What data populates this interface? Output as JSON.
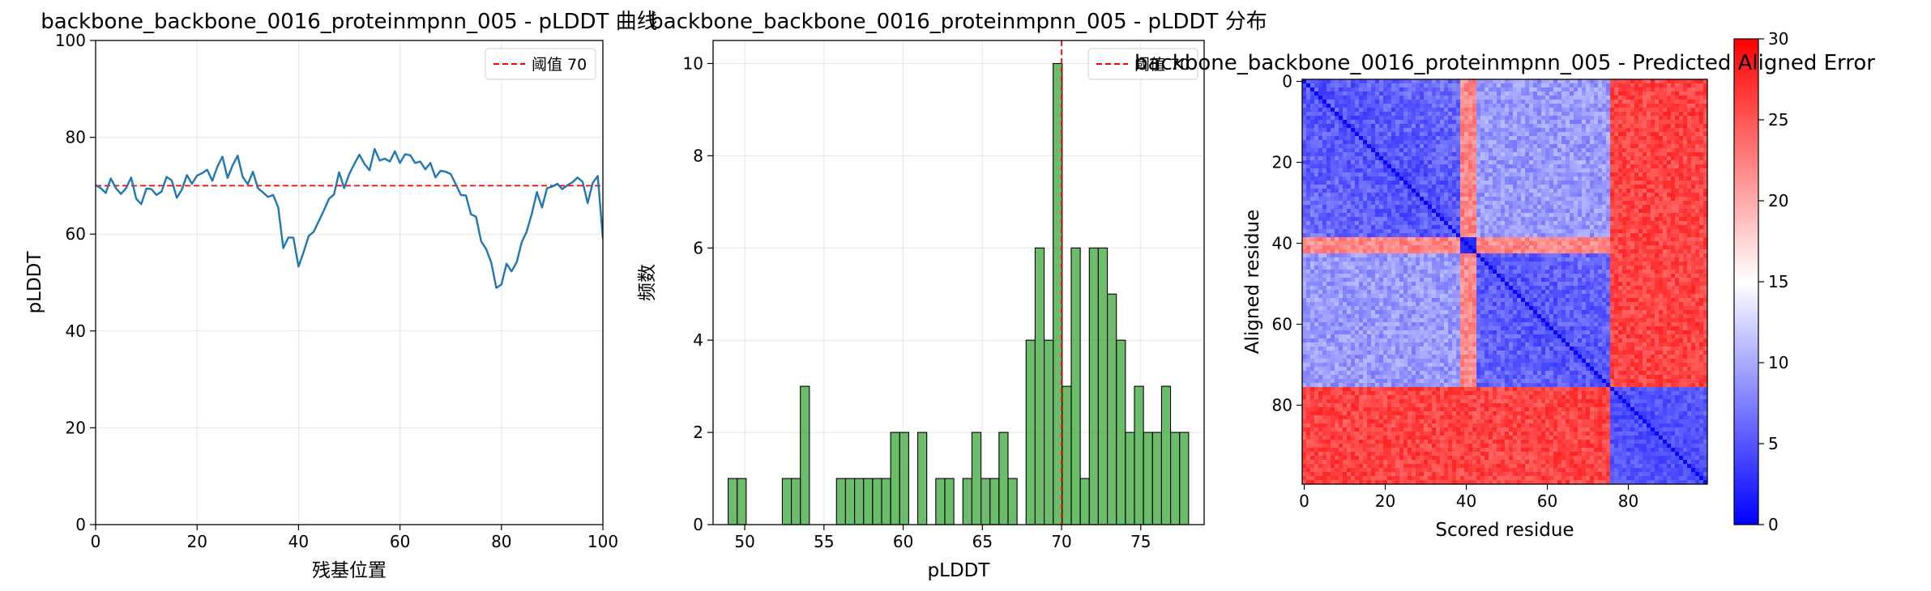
{
  "chart_data": [
    {
      "type": "line",
      "title": "backbone_backbone_0016_proteinmpnn_005 - pLDDT 曲线",
      "xlabel": "残基位置",
      "ylabel": "pLDDT",
      "xlim": [
        0,
        100
      ],
      "ylim": [
        0,
        100
      ],
      "xticks": [
        "0",
        "20",
        "40",
        "60",
        "80",
        "100"
      ],
      "yticks": [
        "0",
        "20",
        "40",
        "60",
        "80",
        "100"
      ],
      "grid": true,
      "legend_position": "top-right",
      "line_color": "#1f77b4",
      "reference_line": {
        "label": "阈值 70",
        "value": 70,
        "color": "#ff0000",
        "style": "dashed"
      },
      "x": [
        0,
        1,
        2,
        3,
        4,
        5,
        6,
        7,
        8,
        9,
        10,
        11,
        12,
        13,
        14,
        15,
        16,
        17,
        18,
        19,
        20,
        21,
        22,
        23,
        24,
        25,
        26,
        27,
        28,
        29,
        30,
        31,
        32,
        33,
        34,
        35,
        36,
        37,
        38,
        39,
        40,
        41,
        42,
        43,
        44,
        45,
        46,
        47,
        48,
        49,
        50,
        51,
        52,
        53,
        54,
        55,
        56,
        57,
        58,
        59,
        60,
        61,
        62,
        63,
        64,
        65,
        66,
        67,
        68,
        69,
        70,
        71,
        72,
        73,
        74,
        75,
        76,
        77,
        78,
        79,
        80,
        81,
        82,
        83,
        84,
        85,
        86,
        87,
        88,
        89,
        90,
        91,
        92,
        93,
        94,
        95,
        96,
        97,
        98,
        99,
        100
      ],
      "y": [
        70.1,
        69.5,
        68.5,
        71.5,
        69.5,
        68.3,
        69.5,
        71.7,
        67.3,
        66.2,
        69.4,
        69.3,
        68.1,
        68.8,
        71.8,
        71.1,
        67.5,
        69.2,
        72.2,
        70.4,
        72.1,
        72.6,
        73.3,
        71.0,
        73.9,
        76.0,
        71.6,
        74.2,
        76.2,
        71.8,
        70.3,
        72.9,
        69.5,
        68.6,
        67.7,
        68.1,
        65.5,
        57.1,
        59.3,
        59.3,
        53.3,
        56.3,
        59.6,
        60.5,
        62.7,
        64.9,
        67.3,
        68.2,
        72.8,
        69.5,
        72.4,
        74.5,
        76.4,
        74.5,
        73.2,
        77.6,
        75.2,
        75.6,
        75.0,
        77.1,
        74.7,
        76.5,
        76.3,
        74.7,
        75.0,
        73.4,
        74.7,
        71.7,
        73.1,
        72.9,
        72.4,
        70.3,
        68.1,
        68.0,
        64.1,
        63.6,
        58.5,
        56.9,
        54.1,
        48.9,
        49.6,
        53.9,
        52.3,
        54.2,
        58.3,
        60.6,
        64.3,
        68.7,
        65.5,
        69.5,
        69.8,
        70.4,
        69.3,
        70.1,
        70.7,
        71.7,
        70.8,
        66.4,
        70.6,
        72.0,
        59.1
      ]
    },
    {
      "type": "bar",
      "title": "backbone_backbone_0016_proteinmpnn_005 - pLDDT 分布",
      "xlabel": "pLDDT",
      "ylabel": "频数",
      "xlim": [
        48.0,
        79.0
      ],
      "ylim": [
        0,
        10.5
      ],
      "xticks": [
        "50",
        "55",
        "60",
        "65",
        "70",
        "75"
      ],
      "yticks": [
        "0",
        "2",
        "4",
        "6",
        "8",
        "10"
      ],
      "grid": true,
      "legend_position": "top-right",
      "bar_color": "#2ca02c",
      "bin_start": 48.95,
      "bin_width": 0.57,
      "counts": [
        1,
        1,
        0,
        0,
        0,
        0,
        1,
        1,
        3,
        0,
        0,
        0,
        1,
        1,
        1,
        1,
        1,
        1,
        2,
        2,
        0,
        2,
        0,
        1,
        1,
        0,
        1,
        2,
        1,
        1,
        2,
        1,
        0,
        4,
        6,
        4,
        10,
        3,
        6,
        1,
        6,
        6,
        5,
        4,
        2,
        3,
        2,
        2,
        3,
        2,
        2
      ],
      "reference_line": {
        "label": "阈值 70",
        "value": 70,
        "color": "#ff0000",
        "style": "dashed"
      }
    },
    {
      "type": "heatmap",
      "title": "backbone_backbone_0016_proteinmpnn_005 - Predicted Aligned Error",
      "xlabel": "Scored residue",
      "ylabel": "Aligned residue",
      "xticks": [
        "0",
        "20",
        "40",
        "60",
        "80"
      ],
      "yticks": [
        "0",
        "20",
        "40",
        "60",
        "80"
      ],
      "residues": 100,
      "colormap": "bwr",
      "colorbar_range": [
        0,
        30
      ],
      "colorbar_ticks": [
        "0",
        "5",
        "10",
        "15",
        "20",
        "25",
        "30"
      ],
      "colors": {
        "low": "#0000ff",
        "mid": "#ffffff",
        "high": "#ff0000"
      },
      "domains": [
        {
          "start": 0,
          "end": 38,
          "pae_within": 3,
          "pae_noise": 4
        },
        {
          "start": 39,
          "end": 42,
          "pae_within": 2,
          "pae_noise": 1
        },
        {
          "start": 43,
          "end": 75,
          "pae_within": 3,
          "pae_noise": 4
        },
        {
          "start": 76,
          "end": 99,
          "pae_within": 3,
          "pae_noise": 3
        }
      ],
      "cross_domain_pae": [
        [
          0,
          22,
          9,
          26
        ],
        [
          22,
          0,
          22,
          26
        ],
        [
          9,
          22,
          0,
          26
        ],
        [
          26,
          26,
          26,
          0
        ]
      ]
    }
  ]
}
